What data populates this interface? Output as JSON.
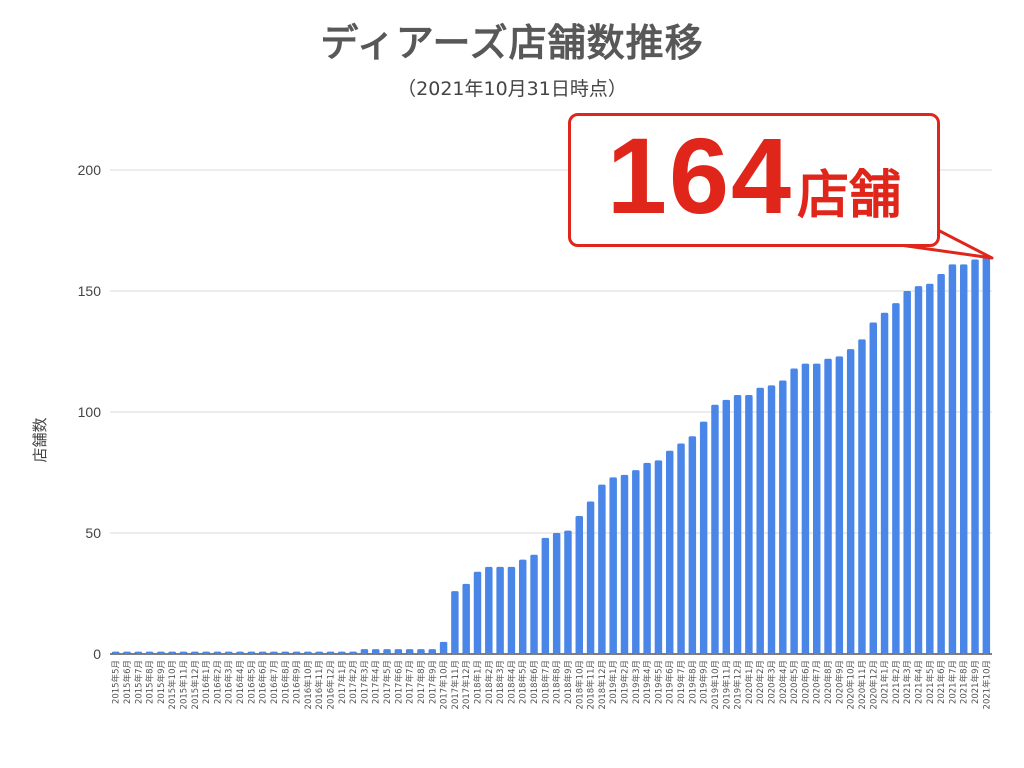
{
  "chart_data": {
    "type": "bar",
    "title": "ディアーズ店舗数推移",
    "subtitle": "（2021年10月31日時点）",
    "ylabel": "店舗数",
    "ylim": [
      0,
      200
    ],
    "yticks": [
      0,
      50,
      100,
      150,
      200
    ],
    "grid": true,
    "bar_color": "#4a86e8",
    "categories": [
      "2015年5月",
      "2015年6月",
      "2015年7月",
      "2015年8月",
      "2015年9月",
      "2015年10月",
      "2015年11月",
      "2015年12月",
      "2016年1月",
      "2016年2月",
      "2016年3月",
      "2016年4月",
      "2016年5月",
      "2016年6月",
      "2016年7月",
      "2016年8月",
      "2016年9月",
      "2016年10月",
      "2016年11月",
      "2016年12月",
      "2017年1月",
      "2017年2月",
      "2017年3月",
      "2017年4月",
      "2017年5月",
      "2017年6月",
      "2017年7月",
      "2017年8月",
      "2017年9月",
      "2017年10月",
      "2017年11月",
      "2017年12月",
      "2018年1月",
      "2018年2月",
      "2018年3月",
      "2018年4月",
      "2018年5月",
      "2018年6月",
      "2018年7月",
      "2018年8月",
      "2018年9月",
      "2018年10月",
      "2018年11月",
      "2018年12月",
      "2019年1月",
      "2019年2月",
      "2019年3月",
      "2019年4月",
      "2019年5月",
      "2019年6月",
      "2019年7月",
      "2019年8月",
      "2019年9月",
      "2019年10月",
      "2019年11月",
      "2019年12月",
      "2020年1月",
      "2020年2月",
      "2020年3月",
      "2020年4月",
      "2020年5月",
      "2020年6月",
      "2020年7月",
      "2020年8月",
      "2020年9月",
      "2020年10月",
      "2020年11月",
      "2020年12月",
      "2021年1月",
      "2021年2月",
      "2021年3月",
      "2021年4月",
      "2021年5月",
      "2021年6月",
      "2021年7月",
      "2021年8月",
      "2021年9月",
      "2021年10月"
    ],
    "values": [
      1,
      1,
      1,
      1,
      1,
      1,
      1,
      1,
      1,
      1,
      1,
      1,
      1,
      1,
      1,
      1,
      1,
      1,
      1,
      1,
      1,
      1,
      2,
      2,
      2,
      2,
      2,
      2,
      2,
      5,
      26,
      29,
      34,
      36,
      36,
      36,
      39,
      41,
      48,
      50,
      51,
      57,
      63,
      70,
      73,
      74,
      76,
      79,
      80,
      84,
      87,
      90,
      96,
      103,
      105,
      107,
      107,
      110,
      111,
      113,
      118,
      120,
      120,
      122,
      123,
      126,
      130,
      137,
      141,
      145,
      150,
      152,
      153,
      157,
      161,
      161,
      163,
      164
    ]
  },
  "callout": {
    "number": "164",
    "unit": "店舗"
  }
}
